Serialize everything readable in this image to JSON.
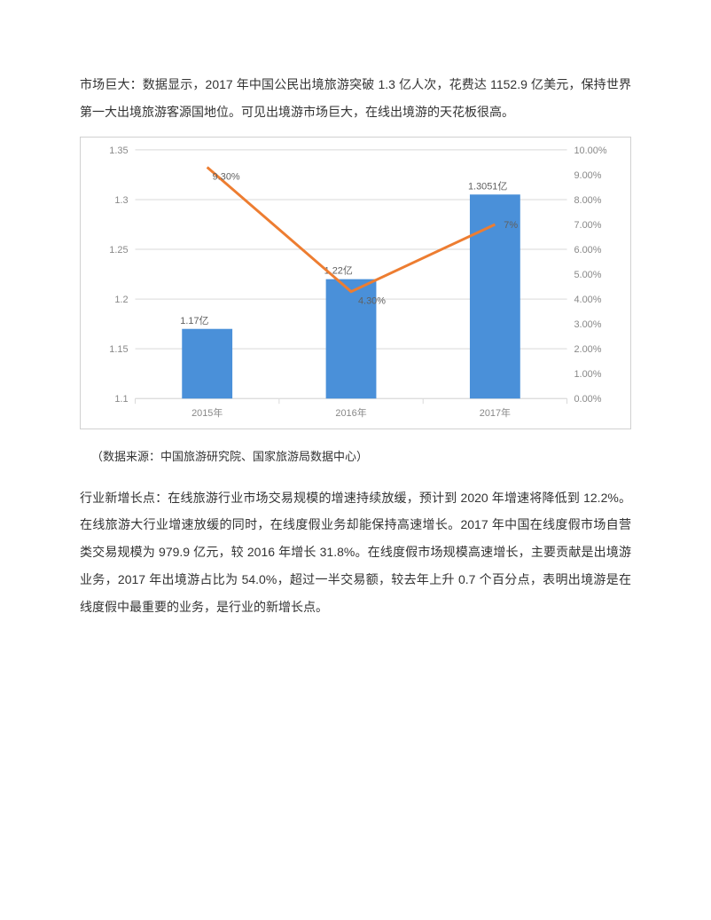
{
  "paragraph1": "市场巨大：数据显示，2017 年中国公民出境旅游突破 1.3 亿人次，花费达 1152.9 亿美元，保持世界第一大出境旅游客源国地位。可见出境游市场巨大，在线出境游的天花板很高。",
  "chart": {
    "type": "bar+line",
    "categories": [
      "2015年",
      "2016年",
      "2017年"
    ],
    "bar_values": [
      1.17,
      1.22,
      1.3051
    ],
    "bar_labels": [
      "1.17亿",
      "1.22亿",
      "1.3051亿"
    ],
    "line_values": [
      9.3,
      4.3,
      7.0
    ],
    "line_labels": [
      "9.30%",
      "4.30%",
      "7%"
    ],
    "bar_color": "#4a90d9",
    "line_color": "#ed7d31",
    "grid_color": "#d9d9d9",
    "axis_text_color": "#888888",
    "label_text_color": "#606060",
    "background_color": "#ffffff",
    "left_axis": {
      "min": 1.1,
      "max": 1.35,
      "step": 0.05,
      "labels": [
        "1.1",
        "1.15",
        "1.2",
        "1.25",
        "1.3",
        "1.35"
      ]
    },
    "right_axis": {
      "min": 0,
      "max": 10,
      "step": 1,
      "labels": [
        "0.00%",
        "1.00%",
        "2.00%",
        "3.00%",
        "4.00%",
        "5.00%",
        "6.00%",
        "7.00%",
        "8.00%",
        "9.00%",
        "10.00%"
      ]
    },
    "font_size_axis": 11,
    "font_size_label": 11,
    "bar_width_ratio": 0.35
  },
  "source": "（数据来源：中国旅游研究院、国家旅游局数据中心）",
  "paragraph2": "行业新增长点：在线旅游行业市场交易规模的增速持续放缓，预计到 2020 年增速将降低到 12.2%。在线旅游大行业增速放缓的同时，在线度假业务却能保持高速增长。2017 年中国在线度假市场自营类交易规模为 979.9 亿元，较 2016 年增长 31.8%。在线度假市场规模高速增长，主要贡献是出境游业务，2017 年出境游占比为 54.0%，超过一半交易额，较去年上升 0.7 个百分点，表明出境游是在线度假中最重要的业务，是行业的新增长点。"
}
